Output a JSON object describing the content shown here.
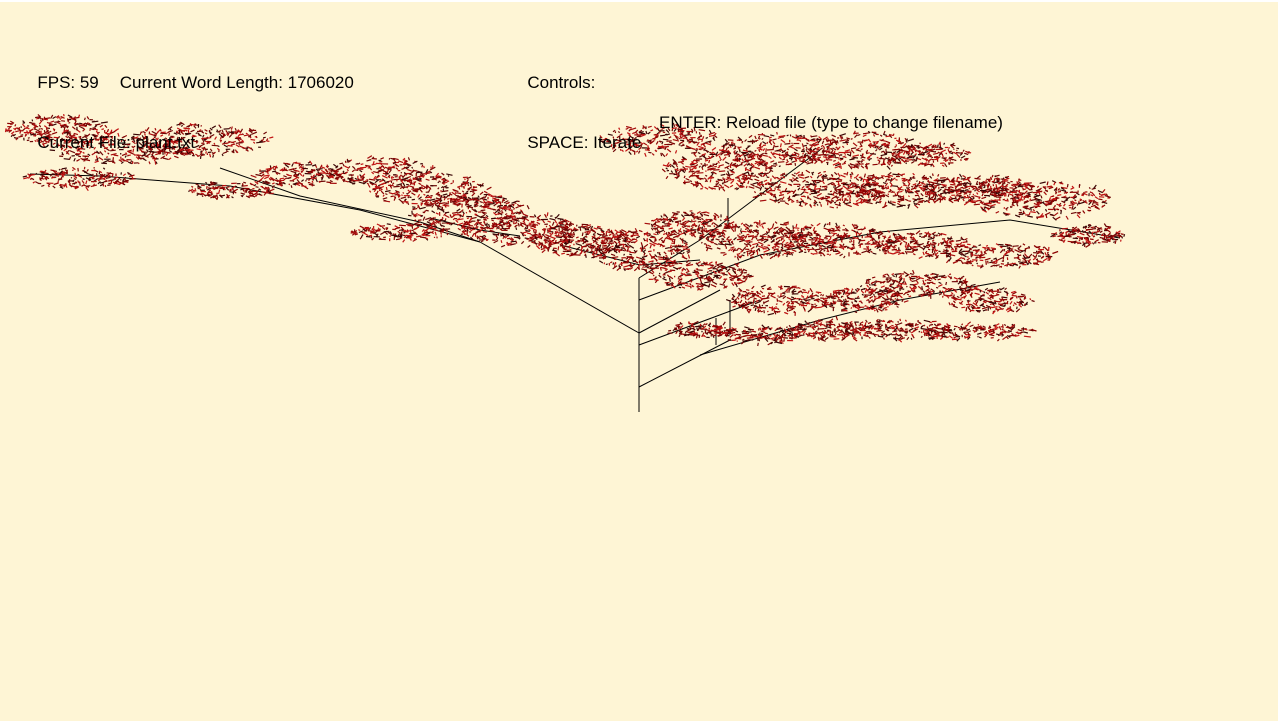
{
  "window": {
    "background_color": "#fef5d5",
    "stem_color": "#000000",
    "foliage_colors": [
      "#8b0000",
      "#a50d0d",
      "#6e0606",
      "#c01212",
      "#3a0505"
    ]
  },
  "hud_left": {
    "fps_label": "FPS: 59",
    "word_length_label": "Current Word Length: 1706020",
    "file_label": "Current File: plant.txt"
  },
  "hud_right": {
    "controls_title": "Controls:",
    "space_hint": "SPACE: Iterate",
    "enter_hint": "ENTER: Reload file (type to change filename)"
  }
}
